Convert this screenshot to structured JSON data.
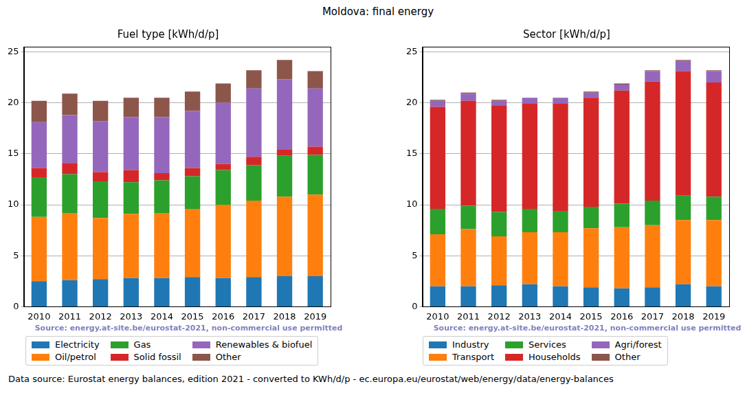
{
  "title": "Moldova: final energy",
  "footer": "Data source: Eurostat energy balances, edition 2021 - converted to KWh/d/p - ec.europa.eu/eurostat/web/energy/data/energy-balances",
  "chart_data": [
    {
      "type": "bar",
      "title": "Fuel type [kWh/d/p]",
      "stacked": true,
      "grid": true,
      "legend": "bottom",
      "annotations": [
        "Source: energy.at-site.be/eurostat-2021, non-commercial use permitted"
      ],
      "categories": [
        "2010",
        "2011",
        "2012",
        "2013",
        "2014",
        "2015",
        "2016",
        "2017",
        "2018",
        "2019"
      ],
      "ylim": [
        0,
        25.5
      ],
      "yticks": [
        0,
        5,
        10,
        15,
        20,
        25
      ],
      "series": [
        {
          "name": "Electricity",
          "color": "#1f77b4",
          "values": [
            2.5,
            2.6,
            2.7,
            2.8,
            2.8,
            2.9,
            2.8,
            2.9,
            3.0,
            3.0
          ]
        },
        {
          "name": "Oil/petrol",
          "color": "#ff7f0e",
          "values": [
            6.3,
            6.6,
            6.0,
            6.3,
            6.4,
            6.7,
            7.2,
            7.5,
            7.8,
            8.0
          ]
        },
        {
          "name": "Gas",
          "color": "#2ca02c",
          "values": [
            3.9,
            3.8,
            3.6,
            3.1,
            3.2,
            3.2,
            3.4,
            3.5,
            4.0,
            3.9
          ]
        },
        {
          "name": "Solid fossil",
          "color": "#d62728",
          "values": [
            0.9,
            1.1,
            0.9,
            1.2,
            0.7,
            0.8,
            0.6,
            0.8,
            0.6,
            0.8
          ]
        },
        {
          "name": "Renewables & biofuel",
          "color": "#9467bd",
          "values": [
            4.5,
            4.7,
            5.0,
            5.2,
            5.5,
            5.6,
            6.0,
            6.7,
            6.9,
            5.7
          ]
        },
        {
          "name": "Other",
          "color": "#8c564b",
          "values": [
            2.1,
            2.1,
            2.0,
            1.9,
            1.9,
            1.9,
            1.9,
            1.8,
            1.9,
            1.7
          ]
        }
      ]
    },
    {
      "type": "bar",
      "title": "Sector [kWh/d/p]",
      "stacked": true,
      "grid": true,
      "legend": "bottom",
      "annotations": [
        "Source: energy.at-site.be/eurostat-2021, non-commercial use permitted"
      ],
      "categories": [
        "2010",
        "2011",
        "2012",
        "2013",
        "2014",
        "2015",
        "2016",
        "2017",
        "2018",
        "2019"
      ],
      "ylim": [
        0,
        25.5
      ],
      "yticks": [
        0,
        5,
        10,
        15,
        20,
        25
      ],
      "series": [
        {
          "name": "Industry",
          "color": "#1f77b4",
          "values": [
            2.0,
            2.0,
            2.1,
            2.2,
            2.0,
            1.9,
            1.8,
            1.9,
            2.2,
            2.0
          ]
        },
        {
          "name": "Transport",
          "color": "#ff7f0e",
          "values": [
            5.1,
            5.6,
            4.8,
            5.1,
            5.3,
            5.8,
            6.0,
            6.1,
            6.3,
            6.5
          ]
        },
        {
          "name": "Services",
          "color": "#2ca02c",
          "values": [
            2.5,
            2.3,
            2.4,
            2.3,
            2.1,
            2.1,
            2.3,
            2.4,
            2.4,
            2.3
          ]
        },
        {
          "name": "Households",
          "color": "#d62728",
          "values": [
            10.0,
            10.3,
            10.4,
            10.3,
            10.5,
            10.7,
            11.1,
            11.7,
            12.2,
            11.2
          ]
        },
        {
          "name": "Agri/forest",
          "color": "#9467bd",
          "values": [
            0.6,
            0.7,
            0.5,
            0.6,
            0.6,
            0.5,
            0.6,
            1.0,
            1.0,
            1.1
          ]
        },
        {
          "name": "Other",
          "color": "#8c564b",
          "values": [
            0.1,
            0.1,
            0.1,
            0.0,
            0.0,
            0.1,
            0.1,
            0.1,
            0.1,
            0.1
          ]
        }
      ]
    }
  ]
}
